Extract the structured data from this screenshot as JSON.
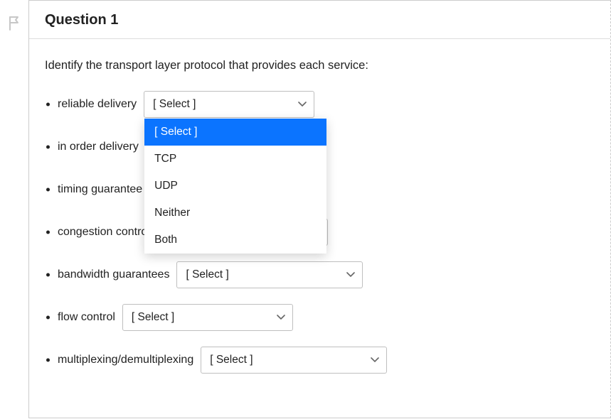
{
  "question": {
    "title": "Question 1",
    "prompt": "Identify the transport layer protocol that provides each service:"
  },
  "select_placeholder": "[ Select ]",
  "items": [
    {
      "label": "reliable delivery",
      "select_width": 240,
      "open": true
    },
    {
      "label": "in order delivery",
      "select_width": 240,
      "open": false
    },
    {
      "label": "timing guarantee",
      "select_width": 240,
      "open": false
    },
    {
      "label": "congestion control",
      "select_width": 240,
      "open": false
    },
    {
      "label": "bandwidth guarantees",
      "select_width": 262,
      "open": false
    },
    {
      "label": "flow control",
      "select_width": 240,
      "open": false
    },
    {
      "label": "multiplexing/demultiplexing",
      "select_width": 262,
      "open": false
    }
  ],
  "dropdown_options": [
    {
      "label": "[ Select ]",
      "selected": true
    },
    {
      "label": "TCP",
      "selected": false
    },
    {
      "label": "UDP",
      "selected": false
    },
    {
      "label": "Neither",
      "selected": false
    },
    {
      "label": "Both",
      "selected": false
    }
  ],
  "colors": {
    "card_border": "#cccccc",
    "divider": "#dddddd",
    "text": "#222222",
    "select_border": "#bfbfbf",
    "highlight_bg": "#0b74ff",
    "highlight_text": "#ffffff",
    "flag_stroke": "#c7c7c7"
  }
}
